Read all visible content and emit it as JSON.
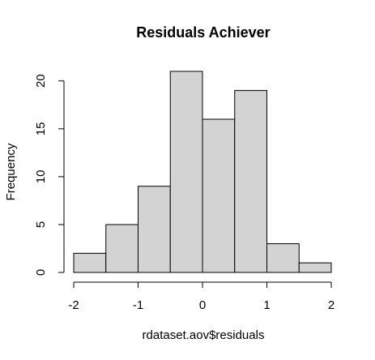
{
  "chart_data": {
    "type": "bar",
    "title": "Residuals  Achiever",
    "xlabel": "rdataset.aov$residuals",
    "ylabel": "Frequency",
    "bins": [
      {
        "from": -2.0,
        "to": -1.5,
        "count": 2
      },
      {
        "from": -1.5,
        "to": -1.0,
        "count": 5
      },
      {
        "from": -1.0,
        "to": -0.5,
        "count": 9
      },
      {
        "from": -0.5,
        "to": 0.0,
        "count": 21
      },
      {
        "from": 0.0,
        "to": 0.5,
        "count": 16
      },
      {
        "from": 0.5,
        "to": 1.0,
        "count": 19
      },
      {
        "from": 1.0,
        "to": 1.5,
        "count": 3
      },
      {
        "from": 1.5,
        "to": 2.0,
        "count": 1
      }
    ],
    "x_ticks": [
      "-2",
      "-1",
      "0",
      "1",
      "2"
    ],
    "y_ticks": [
      "0",
      "5",
      "10",
      "15",
      "20"
    ],
    "xlim": [
      -2,
      2
    ],
    "ylim": [
      0,
      21
    ],
    "grid": false,
    "colors": {
      "bar_fill": "#d3d3d3",
      "bar_stroke": "#000000",
      "axis": "#000000"
    }
  }
}
